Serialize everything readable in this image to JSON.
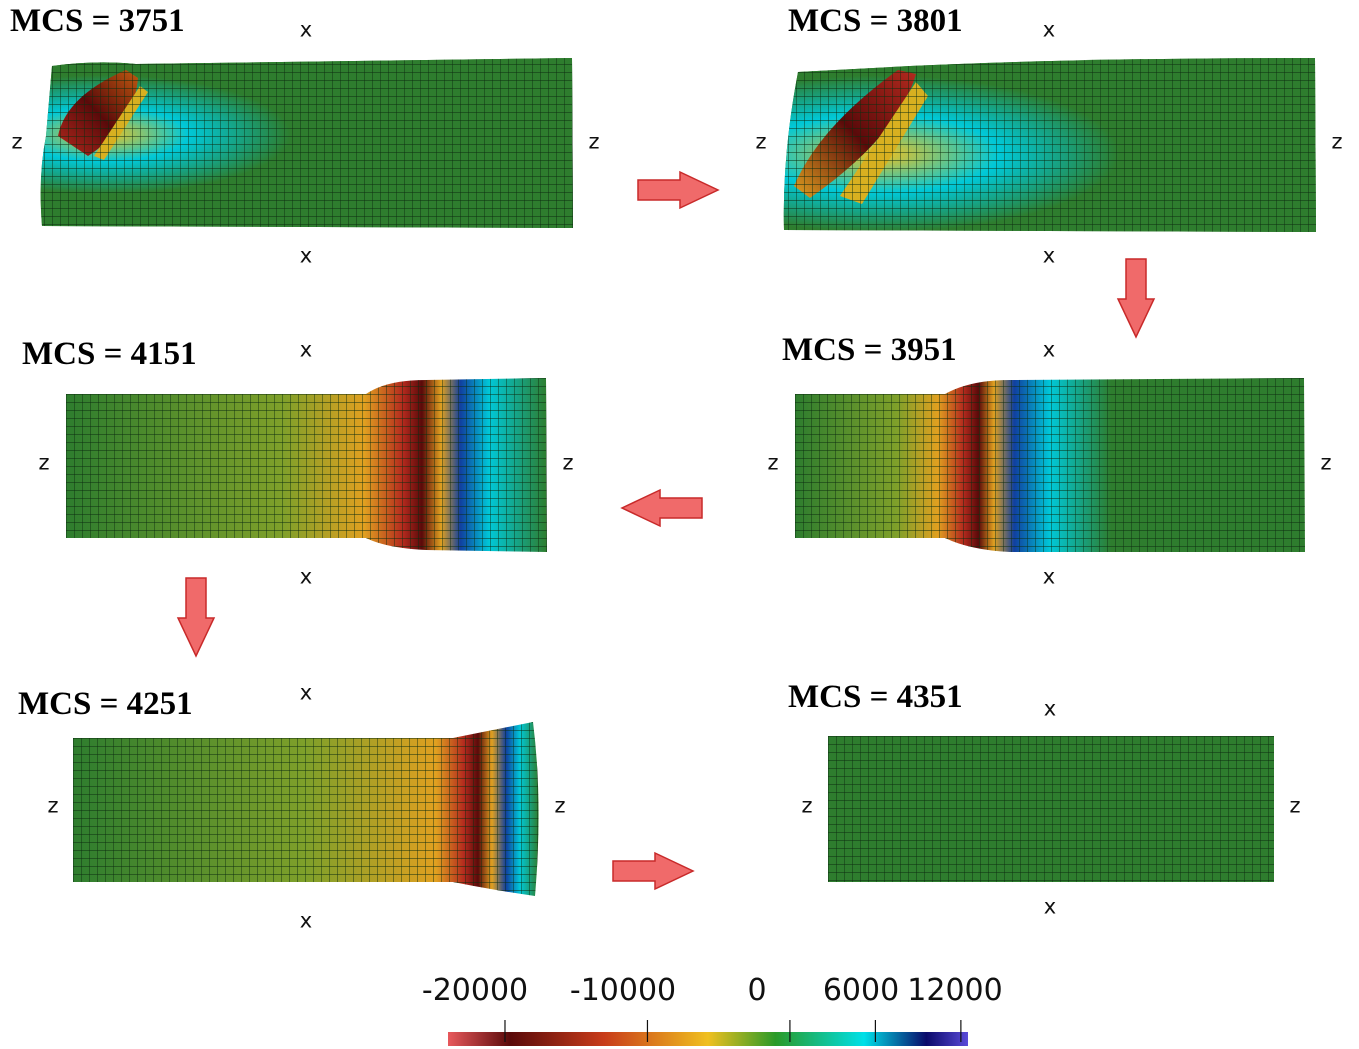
{
  "panels": [
    {
      "id": "p1",
      "title": "MCS = 3751",
      "axis_top": "x",
      "axis_bottom": "x",
      "axis_left": "z",
      "axis_right": "z"
    },
    {
      "id": "p2",
      "title": "MCS = 3801",
      "axis_top": "x",
      "axis_bottom": "x",
      "axis_left": "z",
      "axis_right": "z"
    },
    {
      "id": "p3",
      "title": "MCS = 4151",
      "axis_top": "x",
      "axis_bottom": "x",
      "axis_left": "z",
      "axis_right": "z"
    },
    {
      "id": "p4",
      "title": "MCS = 3951",
      "axis_top": "x",
      "axis_bottom": "x",
      "axis_left": "z",
      "axis_right": "z"
    },
    {
      "id": "p5",
      "title": "MCS = 4251",
      "axis_top": "x",
      "axis_bottom": "x",
      "axis_left": "z",
      "axis_right": "z"
    },
    {
      "id": "p6",
      "title": "MCS = 4351",
      "axis_top": "x",
      "axis_bottom": "x",
      "axis_left": "z",
      "axis_right": "z"
    }
  ],
  "colorbar": {
    "tick_labels": [
      "-20000",
      "-10000",
      "0",
      "6000",
      "12000"
    ],
    "tick_values": [
      -20000,
      -10000,
      0,
      6000,
      12000
    ],
    "range": [
      -24000,
      12500
    ],
    "colors": [
      "#e8595c",
      "#5a0a0a",
      "#c83c1a",
      "#f0c020",
      "#2a9a28",
      "#00e0e8",
      "#0a0a6a",
      "#5a4ad8"
    ]
  },
  "mesh": {
    "base_color": "#2e7d2e",
    "line_color": "#0c2c10",
    "hot_colors": [
      "#5a0a0a",
      "#b42a1e",
      "#e0a020",
      "#00c8d8"
    ]
  }
}
